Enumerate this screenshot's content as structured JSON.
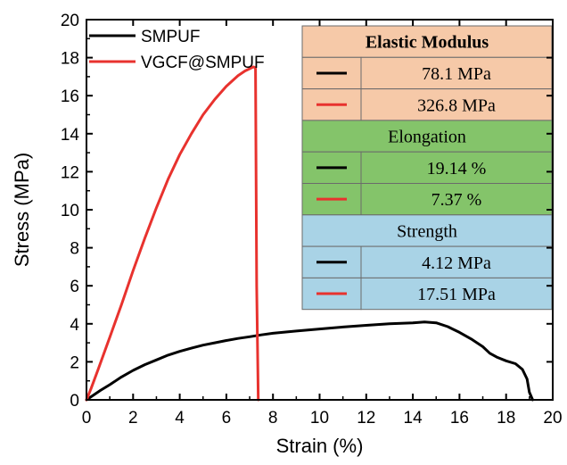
{
  "chart_data": {
    "type": "line",
    "title": "",
    "xlabel": "Strain (%)",
    "ylabel": "Stress (MPa)",
    "xlim": [
      0,
      20
    ],
    "ylim": [
      0,
      20
    ],
    "xticks": [
      "0",
      "2",
      "4",
      "6",
      "8",
      "10",
      "12",
      "14",
      "16",
      "18",
      "20"
    ],
    "yticks": [
      "0",
      "2",
      "4",
      "6",
      "8",
      "10",
      "12",
      "14",
      "16",
      "18",
      "20"
    ],
    "grid": false,
    "legend_position": "top-left",
    "series": [
      {
        "name": "SMPUF",
        "color": "#000000",
        "x": [
          0,
          0.3,
          0.6,
          1.0,
          1.5,
          2.0,
          2.5,
          3.0,
          3.5,
          4.0,
          4.5,
          5.0,
          5.5,
          6.0,
          6.5,
          7.0,
          7.5,
          8.0,
          9.0,
          10.0,
          11.0,
          12.0,
          13.0,
          14.0,
          14.5,
          15.0,
          15.5,
          16.0,
          16.5,
          17.0,
          17.3,
          17.6,
          18.0,
          18.4,
          18.7,
          18.9,
          19.0,
          19.14
        ],
        "y": [
          0,
          0.25,
          0.5,
          0.8,
          1.2,
          1.55,
          1.85,
          2.1,
          2.35,
          2.55,
          2.72,
          2.88,
          3.0,
          3.12,
          3.23,
          3.32,
          3.42,
          3.5,
          3.62,
          3.73,
          3.83,
          3.92,
          4.0,
          4.05,
          4.1,
          4.05,
          3.85,
          3.55,
          3.2,
          2.8,
          2.45,
          2.25,
          2.05,
          1.9,
          1.6,
          1.1,
          0.4,
          0
        ]
      },
      {
        "name": "VGCF@SMPUF",
        "color": "#e8322e",
        "x": [
          0,
          0.2,
          0.5,
          1.0,
          1.5,
          2.0,
          2.5,
          3.0,
          3.5,
          4.0,
          4.5,
          5.0,
          5.5,
          6.0,
          6.5,
          6.8,
          7.0,
          7.15,
          7.2,
          7.25,
          7.3,
          7.37
        ],
        "y": [
          0,
          0.6,
          1.6,
          3.3,
          5.0,
          6.8,
          8.5,
          10.1,
          11.6,
          12.9,
          14.0,
          15.0,
          15.8,
          16.5,
          17.05,
          17.3,
          17.42,
          17.51,
          17.5,
          17.45,
          6.0,
          0
        ]
      }
    ]
  },
  "legend": [
    {
      "label": "SMPUF",
      "color": "#000000"
    },
    {
      "label": "VGCF@SMPUF",
      "color": "#e8322e"
    }
  ],
  "table": {
    "sections": [
      {
        "header": "Elastic Modulus",
        "header_bold": true,
        "bg": "#f6c9a8",
        "rows": [
          {
            "color": "#000000",
            "value": "78.1 MPa"
          },
          {
            "color": "#e8322e",
            "value": "326.8 MPa"
          }
        ]
      },
      {
        "header": "Elongation",
        "header_bold": false,
        "bg": "#84c46a",
        "rows": [
          {
            "color": "#000000",
            "value": "19.14 %"
          },
          {
            "color": "#e8322e",
            "value": "7.37 %"
          }
        ]
      },
      {
        "header": "Strength",
        "header_bold": false,
        "bg": "#a9d3e6",
        "rows": [
          {
            "color": "#000000",
            "value": "4.12 MPa"
          },
          {
            "color": "#e8322e",
            "value": "17.51 MPa"
          }
        ]
      }
    ]
  }
}
